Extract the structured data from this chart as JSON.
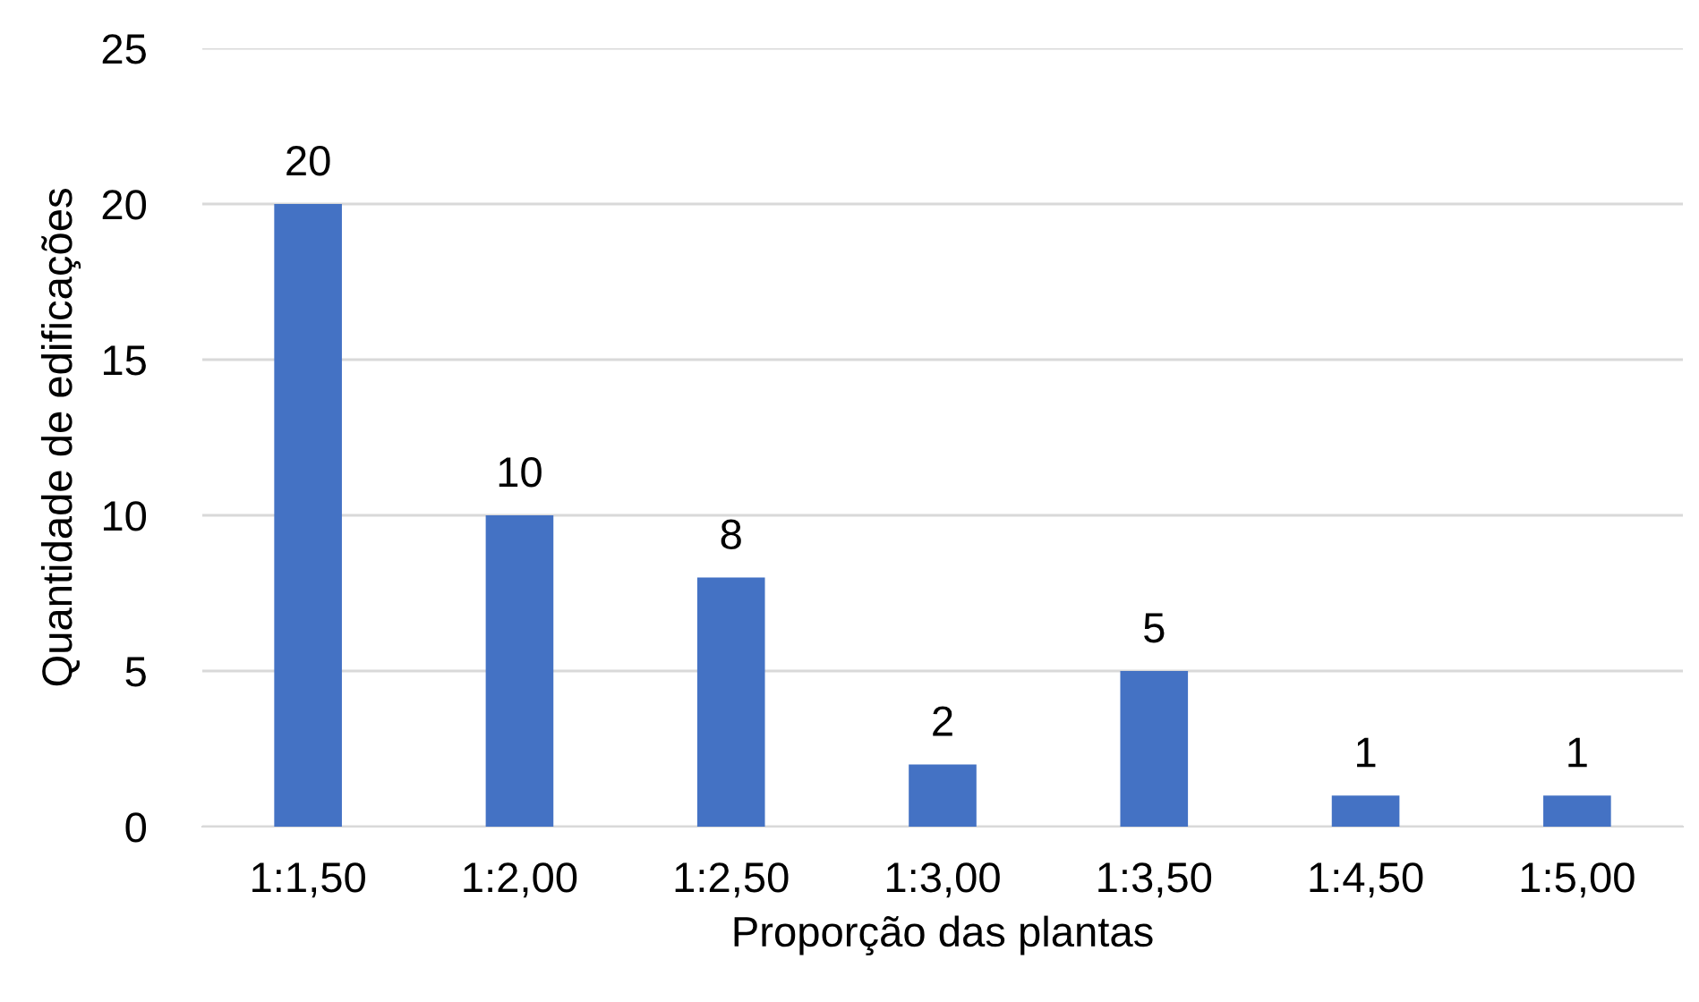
{
  "chart_data": {
    "type": "bar",
    "xlabel": "Proporção das plantas",
    "ylabel": "Quantidade de edificações",
    "categories": [
      "1:1,50",
      "1:2,00",
      "1:2,50",
      "1:3,00",
      "1:3,50",
      "1:4,50",
      "1:5,00"
    ],
    "values": [
      20,
      10,
      8,
      2,
      5,
      1,
      1
    ],
    "color": "#4472c4",
    "ylim": [
      0,
      25
    ],
    "yticks": [
      0,
      5,
      10,
      15,
      20,
      25
    ],
    "grid": "y",
    "data_labels": true,
    "legend": false
  }
}
